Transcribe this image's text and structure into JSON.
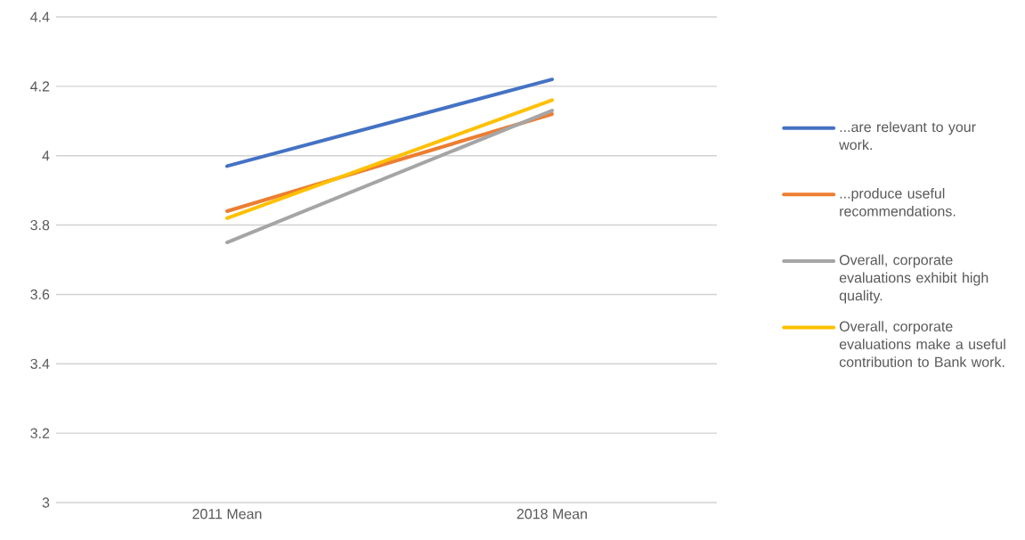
{
  "chart_data": {
    "type": "line",
    "categories": [
      "2011 Mean",
      "2018 Mean"
    ],
    "series": [
      {
        "name": "...are relevant to your work.",
        "color": "#4472c4",
        "values": [
          3.97,
          4.22
        ]
      },
      {
        "name": "...produce useful recommendations.",
        "color": "#ed7d31",
        "values": [
          3.84,
          4.12
        ]
      },
      {
        "name": "Overall, corporate evaluations exhibit high quality.",
        "color": "#a5a5a5",
        "values": [
          3.75,
          4.13
        ]
      },
      {
        "name": "Overall, corporate evaluations make a useful contribution to Bank work.",
        "color": "#ffc000",
        "values": [
          3.82,
          4.16
        ]
      }
    ],
    "ylim": [
      3,
      4.4
    ],
    "yticks": [
      3,
      3.2,
      3.4,
      3.6,
      3.8,
      4,
      4.2,
      4.4
    ],
    "grid": "y",
    "legend": "right"
  }
}
